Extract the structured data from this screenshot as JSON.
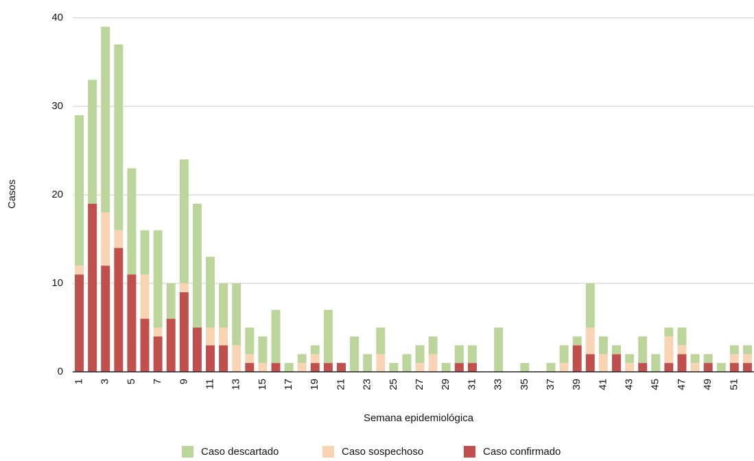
{
  "chart_data": {
    "type": "stacked_bar",
    "x_label": "Semana epidemiológica",
    "y_label": "Casos",
    "categories": [
      "1",
      null,
      "3",
      null,
      "5",
      null,
      "7",
      null,
      "9",
      null,
      "11",
      null,
      "13",
      null,
      "15",
      null,
      "17",
      null,
      "19",
      null,
      "21",
      null,
      "23",
      null,
      "25",
      null,
      "27",
      null,
      "29",
      null,
      "31",
      null,
      "33",
      null,
      "35",
      null,
      "37",
      null,
      "39",
      null,
      "41",
      null,
      "43",
      null,
      "45",
      null,
      "47",
      null,
      "49",
      null,
      "51",
      null
    ],
    "series": [
      {
        "name": "Caso descartado",
        "color": "#bcd59a",
        "values": [
          17,
          14,
          21,
          21,
          12,
          5,
          11,
          4,
          14,
          14,
          8,
          5,
          7,
          3,
          3,
          6,
          1,
          1,
          1,
          6,
          0,
          4,
          2,
          3,
          1,
          2,
          2,
          2,
          1,
          2,
          2,
          0,
          5,
          0,
          1,
          0,
          1,
          2,
          1,
          5,
          2,
          1,
          1,
          3,
          2,
          1,
          2,
          1,
          1,
          1,
          1,
          1
        ]
      },
      {
        "name": "Caso sospechoso",
        "color": "#f9d4b4",
        "values": [
          1,
          0,
          6,
          2,
          0,
          5,
          1,
          0,
          1,
          0,
          2,
          2,
          3,
          1,
          1,
          0,
          0,
          1,
          1,
          0,
          0,
          0,
          0,
          2,
          0,
          0,
          1,
          2,
          0,
          0,
          0,
          0,
          0,
          0,
          0,
          0,
          0,
          1,
          0,
          3,
          2,
          0,
          1,
          0,
          0,
          3,
          1,
          1,
          0,
          0,
          1,
          1
        ]
      },
      {
        "name": "Caso confirmado",
        "color": "#c0504d",
        "values": [
          11,
          19,
          12,
          14,
          11,
          6,
          4,
          6,
          9,
          5,
          3,
          3,
          0,
          1,
          0,
          1,
          0,
          0,
          1,
          1,
          1,
          0,
          0,
          0,
          0,
          0,
          0,
          0,
          0,
          1,
          1,
          0,
          0,
          0,
          0,
          0,
          0,
          0,
          3,
          2,
          0,
          2,
          0,
          1,
          0,
          1,
          2,
          0,
          1,
          0,
          1,
          1
        ]
      }
    ],
    "ylim": [
      0,
      40
    ],
    "yticks": [
      0,
      10,
      20,
      30,
      40
    ],
    "grid": true
  }
}
